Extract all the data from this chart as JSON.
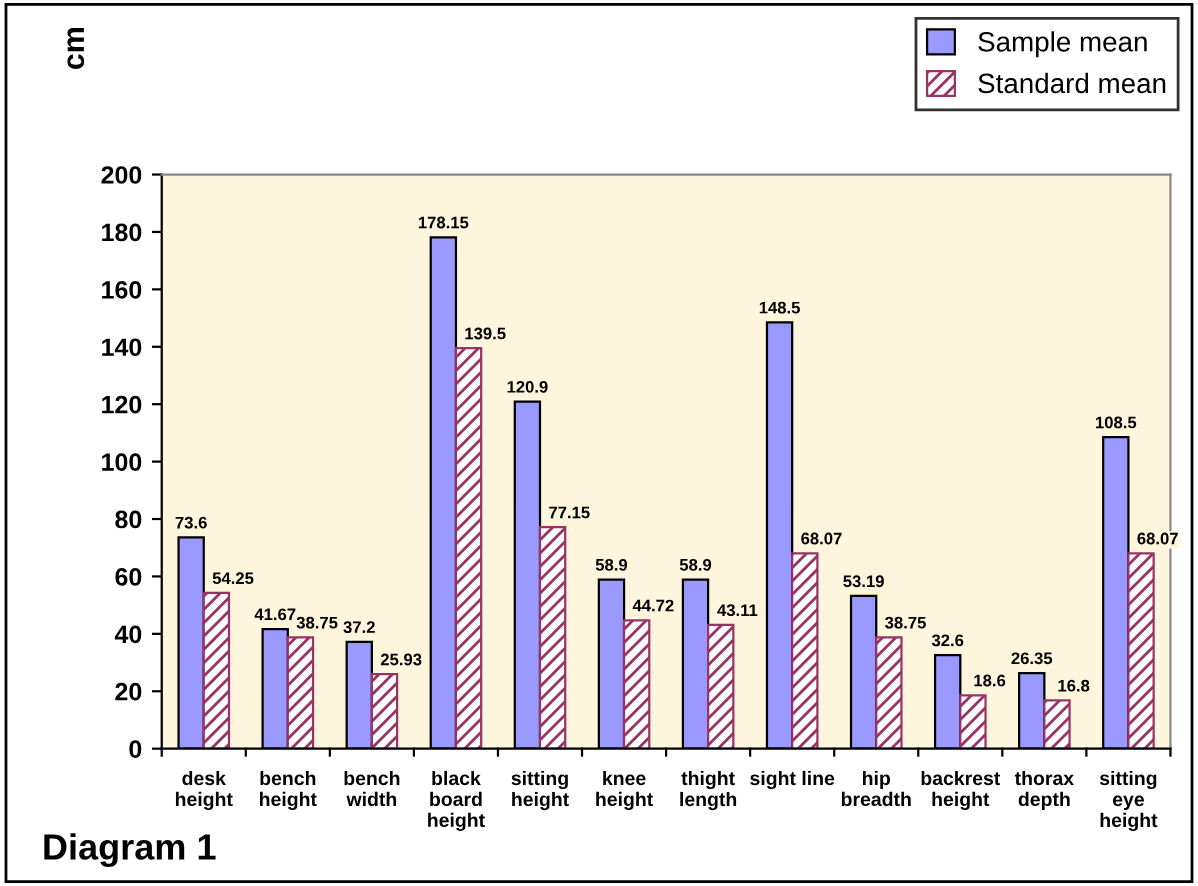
{
  "chart_data": {
    "type": "bar",
    "ylabel": "cm",
    "categories": [
      "desk\nheight",
      "bench\nheight",
      "bench\nwidth",
      "black\nboard\nheight",
      "sitting\nheight",
      "knee\nheight",
      "thight\nlength",
      "sight line",
      "hip\nbreadth",
      "backrest\nheight",
      "thorax\ndepth",
      "sitting\neye\nheight"
    ],
    "series": [
      {
        "name": "Sample mean",
        "color": "#9999ff",
        "values": [
          73.6,
          41.67,
          37.2,
          178.15,
          120.9,
          58.9,
          58.9,
          148.5,
          53.19,
          32.6,
          26.35,
          108.5
        ]
      },
      {
        "name": "Standard mean",
        "color": "#993366",
        "values": [
          54.25,
          38.75,
          25.93,
          139.5,
          77.15,
          44.72,
          43.11,
          68.07,
          38.75,
          18.6,
          16.8,
          68.07
        ]
      }
    ],
    "ylim": [
      0,
      200
    ],
    "yticks": [
      0,
      20,
      40,
      60,
      80,
      100,
      120,
      140,
      160,
      180,
      200
    ],
    "data_labels": true,
    "grid": false,
    "legend": "top right",
    "annotations": [
      "Diagram 1"
    ]
  }
}
